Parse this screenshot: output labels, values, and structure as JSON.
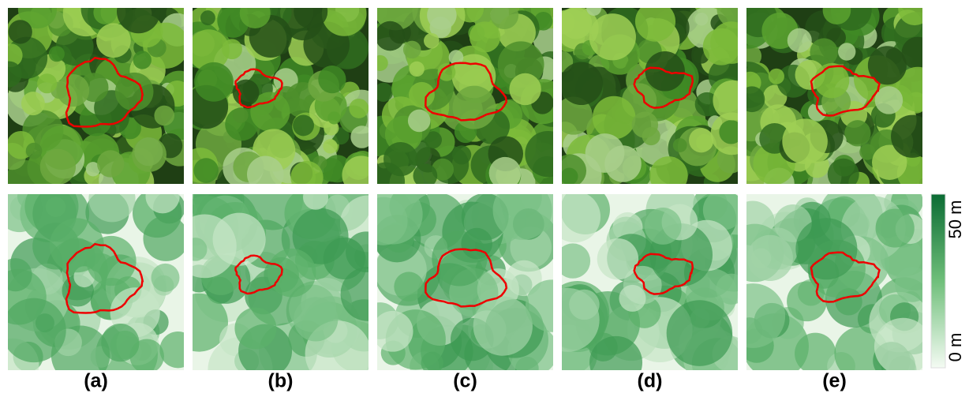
{
  "panels": [
    {
      "label": "(a)"
    },
    {
      "label": "(b)"
    },
    {
      "label": "(c)"
    },
    {
      "label": "(d)"
    },
    {
      "label": "(e)"
    }
  ],
  "colorbar": {
    "top_label": "50 m",
    "bottom_label": "0 m"
  }
}
